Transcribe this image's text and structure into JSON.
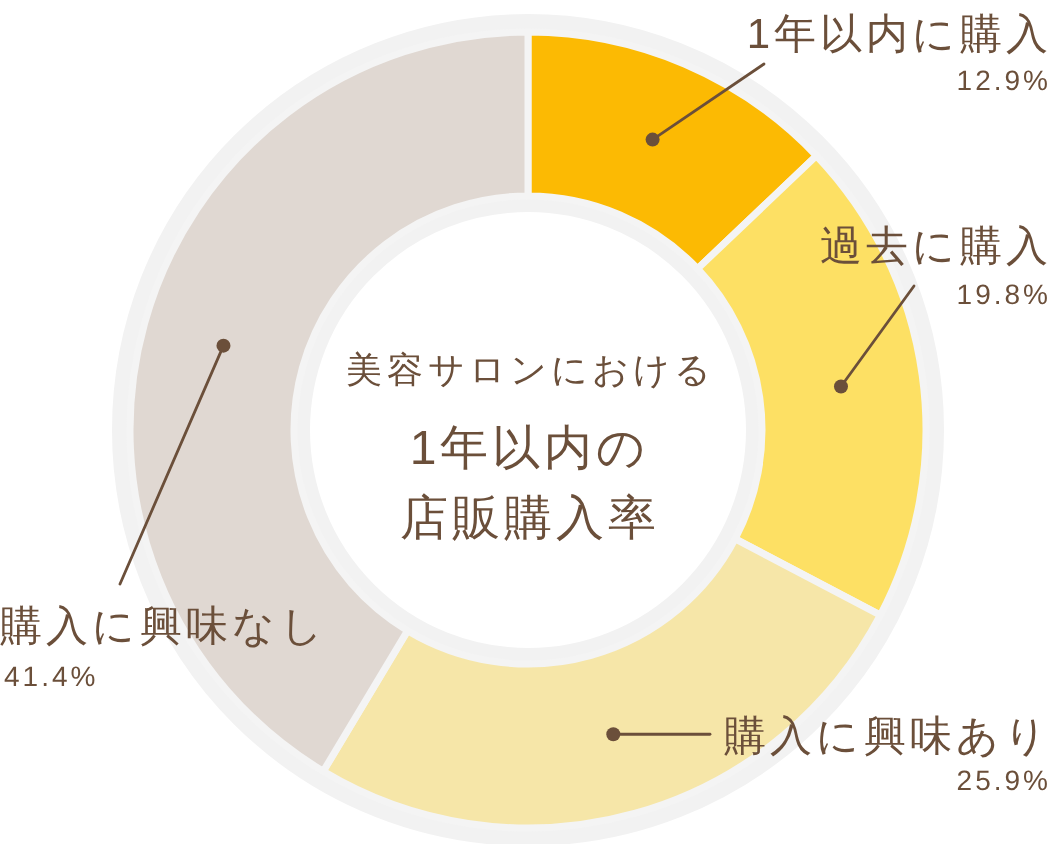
{
  "chart_data": {
    "type": "donut",
    "subtitle": "美容サロンにおける",
    "title": "1年以内の店販購入率",
    "categories": [
      "1年以内に購入",
      "過去に購入",
      "購入に興味あり",
      "購入に興味なし"
    ],
    "values": [
      12.9,
      19.8,
      25.9,
      41.4
    ],
    "colors": [
      "#fcba03",
      "#fde064",
      "#f6e6a8",
      "#e0d8d2"
    ],
    "value_labels": [
      "12.9%",
      "19.8%",
      "25.9%",
      "41.4%"
    ]
  }
}
